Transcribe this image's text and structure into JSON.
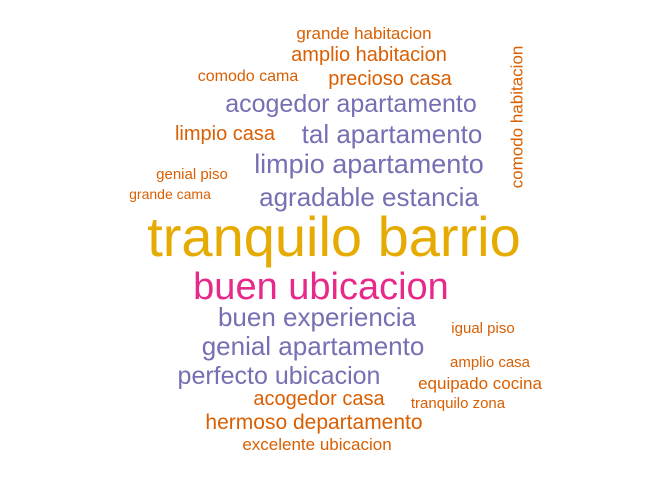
{
  "colors": {
    "orange": "#d95f02",
    "purple": "#7570b3",
    "gold": "#e6ab02",
    "pink": "#e7298a"
  },
  "words": {
    "grande_habitacion": "grande habitacion",
    "amplio_habitacion": "amplio habitacion",
    "comodo_cama": "comodo cama",
    "precioso_casa": "precioso casa",
    "acogedor_apartamento": "acogedor apartamento",
    "limpio_casa": "limpio casa",
    "tal_apartamento": "tal apartamento",
    "genial_piso": "genial piso",
    "limpio_apartamento": "limpio apartamento",
    "grande_cama": "grande cama",
    "agradable_estancia": "agradable estancia",
    "comodo_habitacion": "comodo habitacion",
    "tranquilo_barrio": "tranquilo barrio",
    "buen_ubicacion": "buen ubicacion",
    "buen_experiencia": "buen experiencia",
    "igual_piso": "igual piso",
    "genial_apartamento": "genial apartamento",
    "amplio_casa": "amplio casa",
    "perfecto_ubicacion": "perfecto ubicacion",
    "equipado_cocina": "equipado cocina",
    "acogedor_casa": "acogedor casa",
    "tranquilo_zona": "tranquilo zona",
    "hermoso_departamento": "hermoso departamento",
    "excelente_ubicacion": "excelente ubicacion"
  }
}
